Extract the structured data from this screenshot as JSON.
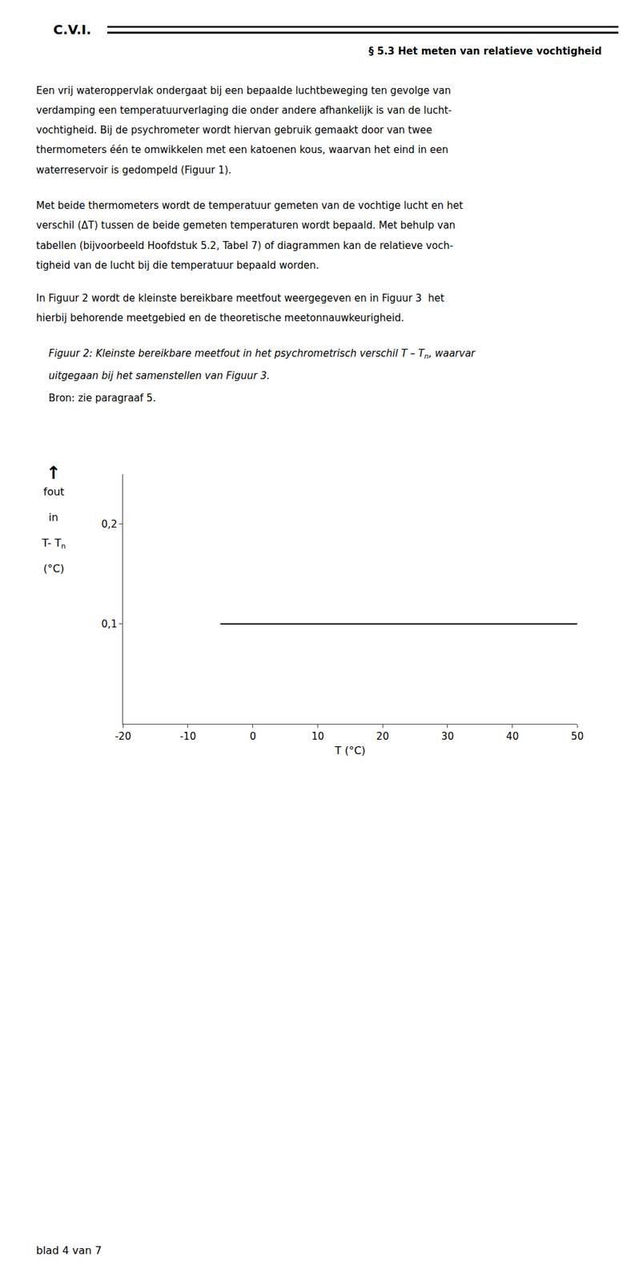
{
  "chart_data": {
    "type": "line",
    "x": [
      -5,
      50
    ],
    "values": [
      0.1,
      0.1
    ],
    "color": "black",
    "xlabel": "T (°C)",
    "ylabel": [
      "↑",
      "fout",
      "in",
      {
        "text": "T- T",
        "sub": "n"
      },
      "(°C)"
    ],
    "xlim": [
      -20,
      50
    ],
    "ylim": [
      0,
      0.25
    ],
    "xticks": [
      -20,
      -10,
      0,
      10,
      20,
      30,
      40,
      50
    ],
    "yticks": [
      {
        "value": 0.1,
        "label": "0,1"
      },
      {
        "value": 0.2,
        "label": "0,2"
      }
    ],
    "grid": false
  },
  "page": {
    "header_left": "C.V.I.",
    "header_right": "§ 5.3 Het meten van relatieve vochtigheid",
    "paragraphs": [
      [
        "Een vrij wateroppervlak ondergaat bij een bepaalde luchtbeweging ten gevolge van",
        "verdamping een temperatuurverlaging die onder andere afhankelijk is van de lucht-",
        "vochtigheid. Bij de psychrometer wordt hiervan gebruik gemaakt door van twee",
        "thermometers één te omwikkelen met een katoenen kous, waarvan het eind in een",
        "waterreservoir is gedompeld (Figuur 1)."
      ],
      [
        "Met beide thermometers wordt de temperatuur gemeten van de vochtige lucht en het",
        "verschil (ΔT) tussen de beide gemeten temperaturen wordt bepaald. Met behulp van",
        "tabellen (bijvoorbeeld Hoofdstuk 5.2, Tabel 7) of diagrammen kan de relatieve voch-",
        "tigheid van de lucht bij die temperatuur bepaald worden."
      ],
      [
        "In Figuur 2 wordt de kleinste bereikbare meetfout weergegeven en in Figuur 3  het",
        "hierbij behorende meetgebied en de theoretische meetonnauwkeurigheid."
      ]
    ],
    "caption": [
      {
        "text": "Figuur 2: Kleinste bereikbare meetfout in het psychrometrisch verschil T – T",
        "sub": "n",
        "end": ", waarvar",
        "italic": true
      },
      {
        "text": "uitgegaan bij het samenstellen van Figuur 3.",
        "italic": true
      },
      {
        "text": "Bron: zie paragraaf 5.",
        "italic": false
      }
    ],
    "footer": "blad 4 van 7"
  }
}
